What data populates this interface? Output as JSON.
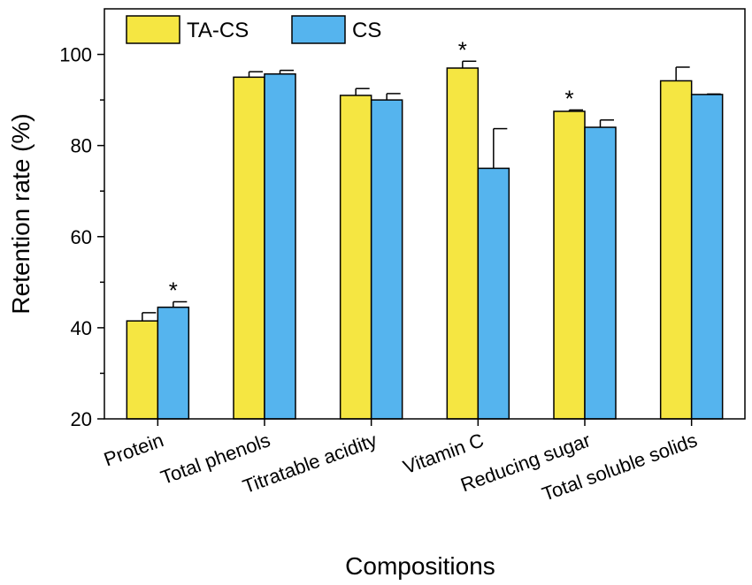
{
  "chart_data": {
    "type": "bar",
    "categories": [
      "Protein",
      "Total phenols",
      "Titratable acidity",
      "Vitamin C",
      "Reducing sugar",
      "Total soluble solids"
    ],
    "series": [
      {
        "name": "TA-CS",
        "color": "#f5e642",
        "values": [
          41.5,
          95.0,
          91.0,
          97.0,
          87.5,
          94.2
        ],
        "errors": [
          1.8,
          1.2,
          1.5,
          1.5,
          0.3,
          3.0
        ],
        "significance": [
          "",
          "",
          "",
          "*",
          "*",
          ""
        ]
      },
      {
        "name": "CS",
        "color": "#55b4ee",
        "values": [
          44.5,
          95.7,
          90.0,
          75.0,
          84.0,
          91.2
        ],
        "errors": [
          1.2,
          0.8,
          1.4,
          8.7,
          1.6,
          0.1
        ],
        "significance": [
          "*",
          "",
          "",
          "",
          "",
          ""
        ]
      }
    ],
    "xlabel": "Compositions",
    "ylabel": "Retention rate (%)",
    "ylim": [
      20,
      110
    ],
    "yticks": [
      "20",
      "40",
      "60",
      "80",
      "100"
    ],
    "grid": false,
    "legend_position": "top-left"
  }
}
